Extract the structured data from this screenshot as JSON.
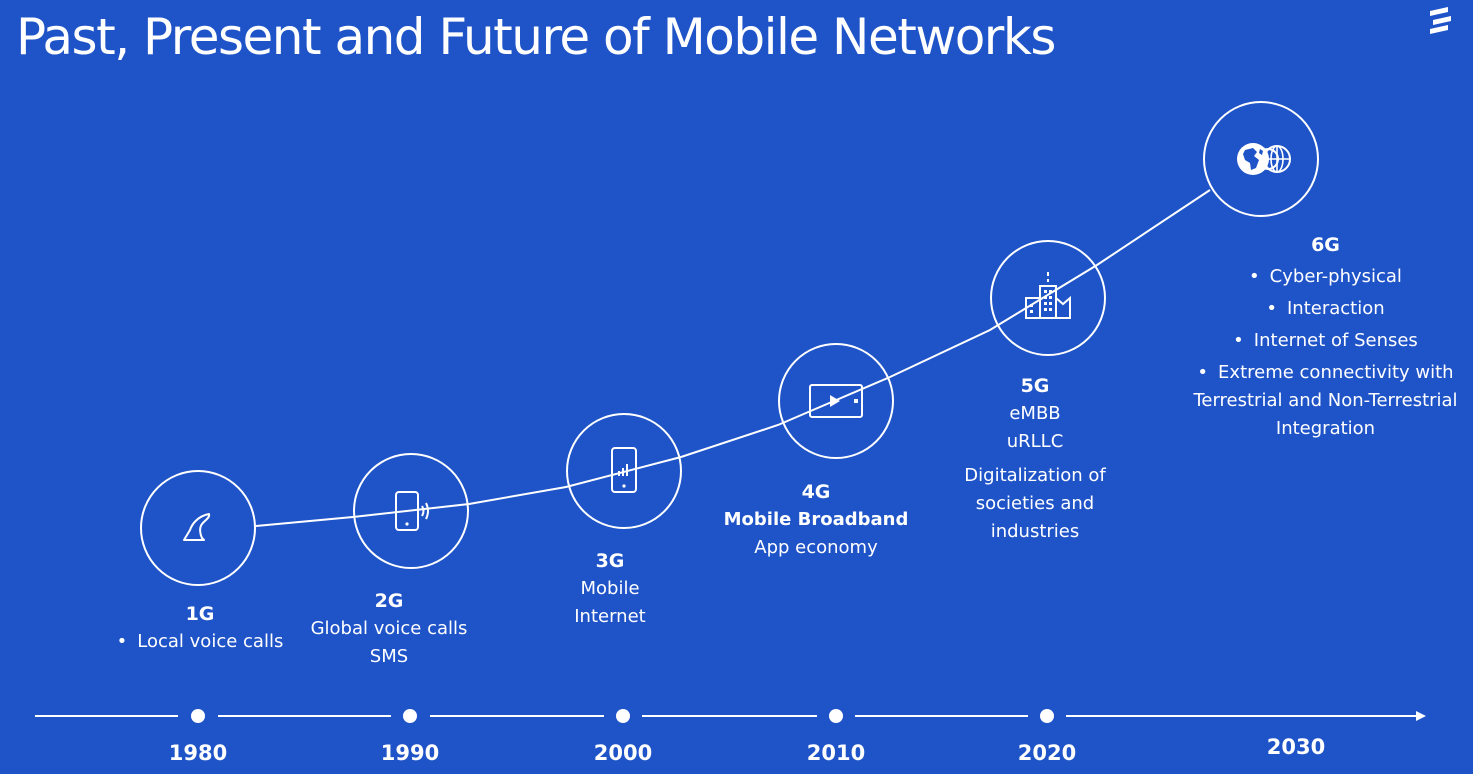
{
  "title": "Past, Present and Future of Mobile Networks",
  "generations": [
    {
      "gen": "1G",
      "lines": [
        {
          "text": "Local voice calls",
          "bullet": true
        }
      ]
    },
    {
      "gen": "2G",
      "lines": [
        {
          "text": "Global voice calls"
        },
        {
          "text": "SMS"
        }
      ]
    },
    {
      "gen": "3G",
      "lines": [
        {
          "text": "Mobile"
        },
        {
          "text": "Internet"
        }
      ]
    },
    {
      "gen": "4G",
      "lines": [
        {
          "text": "Mobile Broadband",
          "bold": true
        },
        {
          "text": "App economy"
        }
      ]
    },
    {
      "gen": "5G",
      "lines": [
        {
          "text": "eMBB"
        },
        {
          "text": "uRLLC"
        },
        {
          "text": "Digitalization of"
        },
        {
          "text": "societies and"
        },
        {
          "text": "industries"
        }
      ]
    },
    {
      "gen": "6G",
      "lines": [
        {
          "text": "Cyber-physical",
          "bullet": true
        },
        {
          "text": "Interaction",
          "bullet": true
        },
        {
          "text": "Internet of Senses",
          "bullet": true
        },
        {
          "text": "Extreme connectivity with",
          "bullet": true
        },
        {
          "text": "Terrestrial and Non-Terrestrial"
        },
        {
          "text": "Integration"
        }
      ]
    }
  ],
  "icons": [
    "phone-handset-icon",
    "mobile-phone-signal-icon",
    "smartphone-signal-icon",
    "video-screen-icon",
    "smart-city-icon",
    "globe-network-icon"
  ],
  "years": [
    "1980",
    "1990",
    "2000",
    "2010",
    "2020",
    "2030"
  ],
  "colors": {
    "background": "#1f54c8",
    "foreground": "#ffffff"
  }
}
